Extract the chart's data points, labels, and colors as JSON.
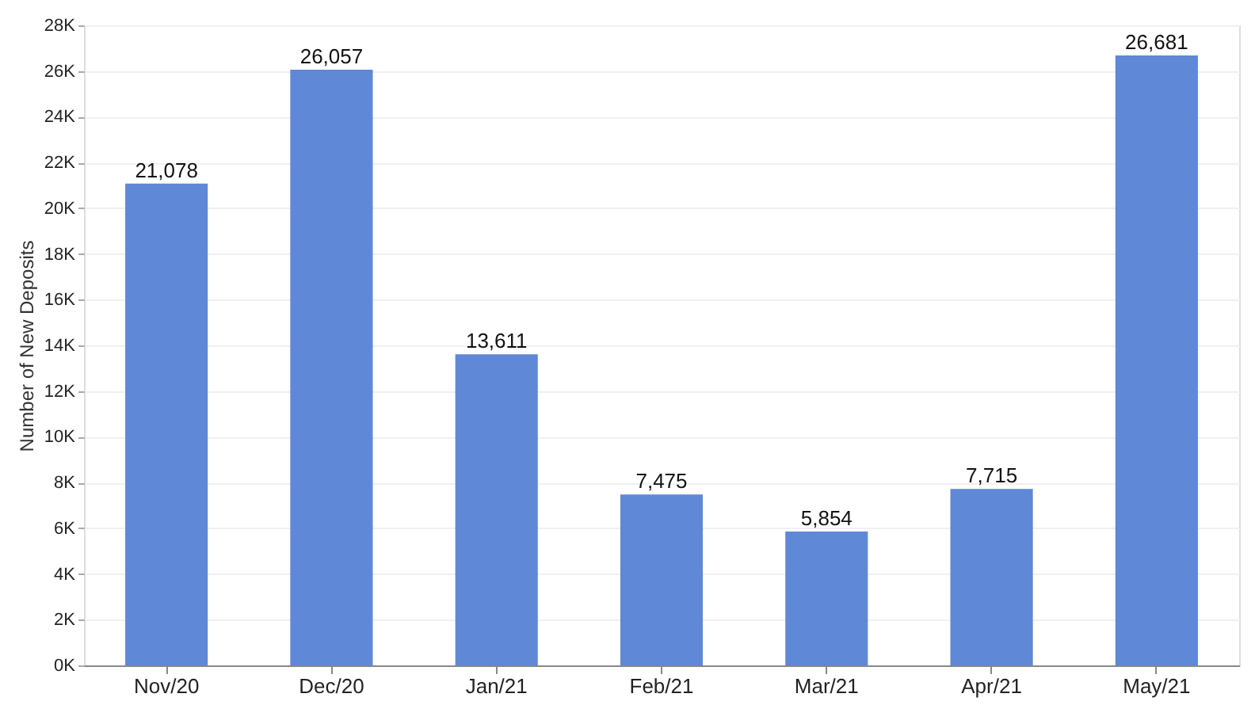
{
  "chart_data": {
    "type": "bar",
    "ylabel": "Number of New Deposits",
    "categories": [
      "Nov/20",
      "Dec/20",
      "Jan/21",
      "Feb/21",
      "Mar/21",
      "Apr/21",
      "May/21"
    ],
    "values": [
      21078,
      26057,
      13611,
      7475,
      5854,
      7715,
      26681
    ],
    "value_labels": [
      "21,078",
      "26,057",
      "13,611",
      "7,475",
      "5,854",
      "7,715",
      "26,681"
    ],
    "color": "#5f88d6",
    "ylim": [
      0,
      28000
    ],
    "yticks": [
      {
        "value": 0,
        "label": "0K"
      },
      {
        "value": 2000,
        "label": "2K"
      },
      {
        "value": 4000,
        "label": "4K"
      },
      {
        "value": 6000,
        "label": "6K"
      },
      {
        "value": 8000,
        "label": "8K"
      },
      {
        "value": 10000,
        "label": "10K"
      },
      {
        "value": 12000,
        "label": "12K"
      },
      {
        "value": 14000,
        "label": "14K"
      },
      {
        "value": 16000,
        "label": "16K"
      },
      {
        "value": 18000,
        "label": "18K"
      },
      {
        "value": 20000,
        "label": "20K"
      },
      {
        "value": 22000,
        "label": "22K"
      },
      {
        "value": 24000,
        "label": "24K"
      },
      {
        "value": 26000,
        "label": "26K"
      },
      {
        "value": 28000,
        "label": "28K"
      }
    ],
    "grid": "y"
  }
}
